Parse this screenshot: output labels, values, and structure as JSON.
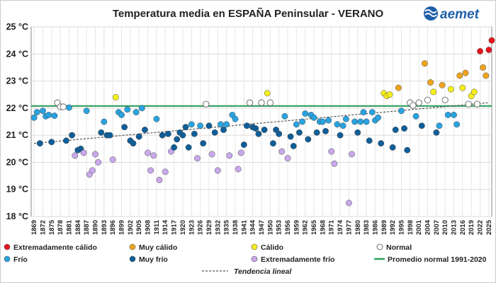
{
  "brand": {
    "name": "aemet",
    "color": "#1f5fa8",
    "icon": "aemet-logo-icon"
  },
  "chart_data": {
    "type": "scatter",
    "title": "Temperatura media en ESPAÑA Peninsular - VERANO",
    "y_unit": "°C",
    "ylim": [
      18,
      25
    ],
    "yticks": [
      18,
      19,
      20,
      21,
      22,
      23,
      24,
      25
    ],
    "xlim": [
      1868,
      2026
    ],
    "xtick_start": 1869,
    "xtick_step": 3,
    "xtick_end": 2025,
    "grid": true,
    "normal_mean": {
      "label": "Promedio normal 1991-2020",
      "value": 22.08,
      "color": "#2e9e5b"
    },
    "trend": {
      "label": "Tendencia lineal",
      "start": [
        1869,
        20.7
      ],
      "end": [
        2025,
        22.2
      ],
      "color": "#555555"
    },
    "categories": {
      "ec": {
        "label": "Extremadamente cálido",
        "color": "#e8141c"
      },
      "mc": {
        "label": "Muy cálido",
        "color": "#f0a41e"
      },
      "c": {
        "label": "Cálido",
        "color": "#f5ee1e"
      },
      "n": {
        "label": "Normal",
        "color": "#ffffff"
      },
      "f": {
        "label": "Frío",
        "color": "#29a3e0"
      },
      "mf": {
        "label": "Muy frío",
        "color": "#0f5e99"
      },
      "ef": {
        "label": "Extremadamente frío",
        "color": "#c9a8ec"
      }
    },
    "points": [
      [
        1869,
        21.65,
        "f"
      ],
      [
        1870,
        21.85,
        "f"
      ],
      [
        1871,
        20.7,
        "mf"
      ],
      [
        1872,
        21.9,
        "f"
      ],
      [
        1873,
        21.7,
        "f"
      ],
      [
        1874,
        21.75,
        "f"
      ],
      [
        1875,
        20.75,
        "mf"
      ],
      [
        1876,
        21.72,
        "f"
      ],
      [
        1877,
        22.2,
        "n"
      ],
      [
        1878,
        22.05,
        "n"
      ],
      [
        1879,
        22.05,
        "n"
      ],
      [
        1880,
        20.8,
        "mf"
      ],
      [
        1881,
        22.02,
        "f"
      ],
      [
        1882,
        21.0,
        "mf"
      ],
      [
        1883,
        20.25,
        "ef"
      ],
      [
        1884,
        20.45,
        "mf"
      ],
      [
        1885,
        20.5,
        "mf"
      ],
      [
        1886,
        20.35,
        "ef"
      ],
      [
        1887,
        21.9,
        "f"
      ],
      [
        1888,
        19.55,
        "ef"
      ],
      [
        1889,
        19.7,
        "ef"
      ],
      [
        1890,
        20.3,
        "ef"
      ],
      [
        1891,
        20.0,
        "ef"
      ],
      [
        1892,
        21.1,
        "mf"
      ],
      [
        1893,
        21.5,
        "f"
      ],
      [
        1894,
        21.0,
        "mf"
      ],
      [
        1895,
        21.0,
        "mf"
      ],
      [
        1896,
        20.1,
        "ef"
      ],
      [
        1897,
        22.4,
        "c"
      ],
      [
        1898,
        21.85,
        "f"
      ],
      [
        1899,
        21.75,
        "f"
      ],
      [
        1900,
        21.3,
        "mf"
      ],
      [
        1901,
        21.95,
        "f"
      ],
      [
        1902,
        20.8,
        "mf"
      ],
      [
        1903,
        20.7,
        "mf"
      ],
      [
        1904,
        21.85,
        "f"
      ],
      [
        1905,
        20.95,
        "mf"
      ],
      [
        1906,
        22.0,
        "f"
      ],
      [
        1907,
        21.2,
        "mf"
      ],
      [
        1908,
        20.35,
        "ef"
      ],
      [
        1909,
        19.7,
        "ef"
      ],
      [
        1910,
        20.25,
        "ef"
      ],
      [
        1911,
        21.6,
        "f"
      ],
      [
        1912,
        19.35,
        "ef"
      ],
      [
        1913,
        21.0,
        "mf"
      ],
      [
        1914,
        19.65,
        "ef"
      ],
      [
        1915,
        21.05,
        "mf"
      ],
      [
        1916,
        20.4,
        "ef"
      ],
      [
        1917,
        20.55,
        "mf"
      ],
      [
        1918,
        20.85,
        "mf"
      ],
      [
        1919,
        21.1,
        "mf"
      ],
      [
        1920,
        21.0,
        "mf"
      ],
      [
        1921,
        21.3,
        "mf"
      ],
      [
        1922,
        20.55,
        "mf"
      ],
      [
        1923,
        21.4,
        "f"
      ],
      [
        1924,
        21.05,
        "mf"
      ],
      [
        1925,
        20.15,
        "ef"
      ],
      [
        1926,
        21.35,
        "f"
      ],
      [
        1927,
        20.7,
        "mf"
      ],
      [
        1928,
        22.15,
        "n"
      ],
      [
        1929,
        21.35,
        "mf"
      ],
      [
        1930,
        20.3,
        "ef"
      ],
      [
        1931,
        21.1,
        "mf"
      ],
      [
        1932,
        19.7,
        "ef"
      ],
      [
        1933,
        21.4,
        "f"
      ],
      [
        1934,
        21.2,
        "mf"
      ],
      [
        1935,
        21.4,
        "f"
      ],
      [
        1936,
        20.25,
        "ef"
      ],
      [
        1937,
        21.75,
        "f"
      ],
      [
        1938,
        21.6,
        "f"
      ],
      [
        1939,
        19.75,
        "ef"
      ],
      [
        1940,
        20.35,
        "ef"
      ],
      [
        1941,
        20.65,
        "mf"
      ],
      [
        1942,
        21.35,
        "mf"
      ],
      [
        1943,
        22.2,
        "n"
      ],
      [
        1944,
        21.3,
        "mf"
      ],
      [
        1945,
        21.25,
        "mf"
      ],
      [
        1946,
        21.05,
        "mf"
      ],
      [
        1947,
        22.2,
        "n"
      ],
      [
        1948,
        21.2,
        "mf"
      ],
      [
        1949,
        22.55,
        "c"
      ],
      [
        1950,
        22.2,
        "n"
      ],
      [
        1951,
        20.7,
        "mf"
      ],
      [
        1952,
        21.2,
        "mf"
      ],
      [
        1953,
        21.05,
        "mf"
      ],
      [
        1954,
        20.4,
        "ef"
      ],
      [
        1955,
        21.7,
        "f"
      ],
      [
        1956,
        20.15,
        "ef"
      ],
      [
        1957,
        20.95,
        "mf"
      ],
      [
        1958,
        20.6,
        "mf"
      ],
      [
        1959,
        21.4,
        "f"
      ],
      [
        1960,
        21.1,
        "mf"
      ],
      [
        1961,
        21.5,
        "f"
      ],
      [
        1962,
        21.8,
        "f"
      ],
      [
        1963,
        20.85,
        "mf"
      ],
      [
        1964,
        21.75,
        "f"
      ],
      [
        1965,
        21.65,
        "f"
      ],
      [
        1966,
        21.1,
        "mf"
      ],
      [
        1967,
        21.5,
        "f"
      ],
      [
        1968,
        21.5,
        "f"
      ],
      [
        1969,
        21.15,
        "mf"
      ],
      [
        1970,
        21.55,
        "f"
      ],
      [
        1971,
        20.4,
        "ef"
      ],
      [
        1972,
        19.95,
        "ef"
      ],
      [
        1973,
        21.4,
        "f"
      ],
      [
        1974,
        21.0,
        "mf"
      ],
      [
        1975,
        21.35,
        "f"
      ],
      [
        1976,
        21.6,
        "f"
      ],
      [
        1977,
        18.5,
        "ef"
      ],
      [
        1978,
        20.3,
        "ef"
      ],
      [
        1979,
        21.5,
        "f"
      ],
      [
        1980,
        21.1,
        "mf"
      ],
      [
        1981,
        21.5,
        "f"
      ],
      [
        1982,
        21.85,
        "f"
      ],
      [
        1983,
        21.5,
        "f"
      ],
      [
        1984,
        20.8,
        "mf"
      ],
      [
        1985,
        21.85,
        "f"
      ],
      [
        1986,
        21.55,
        "f"
      ],
      [
        1987,
        21.65,
        "f"
      ],
      [
        1988,
        20.7,
        "mf"
      ],
      [
        1989,
        22.55,
        "c"
      ],
      [
        1990,
        22.45,
        "c"
      ],
      [
        1991,
        22.5,
        "c"
      ],
      [
        1992,
        20.55,
        "mf"
      ],
      [
        1993,
        21.2,
        "mf"
      ],
      [
        1994,
        22.75,
        "mc"
      ],
      [
        1995,
        21.9,
        "f"
      ],
      [
        1996,
        21.25,
        "mf"
      ],
      [
        1997,
        20.45,
        "mf"
      ],
      [
        1998,
        22.2,
        "n"
      ],
      [
        1999,
        22.1,
        "n"
      ],
      [
        2000,
        21.7,
        "f"
      ],
      [
        2001,
        22.2,
        "n"
      ],
      [
        2002,
        21.35,
        "mf"
      ],
      [
        2003,
        23.65,
        "mc"
      ],
      [
        2004,
        22.3,
        "n"
      ],
      [
        2005,
        22.95,
        "mc"
      ],
      [
        2006,
        22.6,
        "c"
      ],
      [
        2007,
        21.1,
        "mf"
      ],
      [
        2008,
        21.35,
        "f"
      ],
      [
        2009,
        22.85,
        "mc"
      ],
      [
        2010,
        22.3,
        "n"
      ],
      [
        2011,
        21.75,
        "f"
      ],
      [
        2012,
        22.7,
        "c"
      ],
      [
        2013,
        21.75,
        "f"
      ],
      [
        2014,
        21.4,
        "f"
      ],
      [
        2015,
        23.2,
        "mc"
      ],
      [
        2016,
        22.75,
        "c"
      ],
      [
        2017,
        23.3,
        "mc"
      ],
      [
        2018,
        22.15,
        "n"
      ],
      [
        2019,
        22.45,
        "c"
      ],
      [
        2020,
        22.6,
        "c"
      ],
      [
        2021,
        22.15,
        "n"
      ],
      [
        2022,
        24.1,
        "ec"
      ],
      [
        2023,
        23.5,
        "mc"
      ],
      [
        2024,
        23.2,
        "mc"
      ],
      [
        2025,
        24.15,
        "ec"
      ],
      [
        2026,
        24.5,
        "ec"
      ]
    ]
  }
}
